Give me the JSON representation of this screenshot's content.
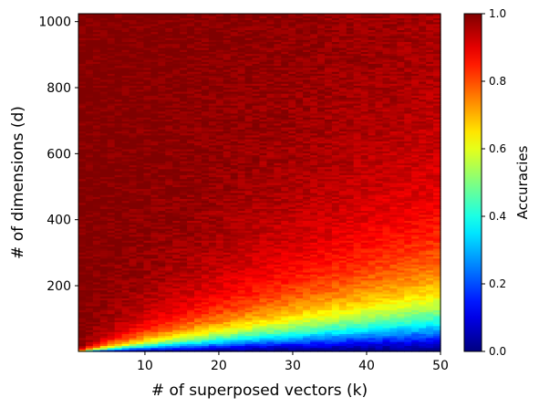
{
  "chart_data": {
    "type": "heatmap",
    "title": "",
    "xlabel": "# of superposed vectors (k)",
    "ylabel": "# of dimensions (d)",
    "colorbar_label": "Accuracies",
    "colormap": "jet",
    "xlim": [
      1,
      50
    ],
    "ylim": [
      1,
      1024
    ],
    "clim": [
      0.0,
      1.0
    ],
    "x_ticks": [
      10,
      20,
      30,
      40,
      50
    ],
    "x_tick_labels": [
      "10",
      "20",
      "30",
      "40",
      "50"
    ],
    "y_ticks": [
      200,
      400,
      600,
      800,
      1000
    ],
    "y_tick_labels": [
      "200",
      "400",
      "600",
      "800",
      "1000"
    ],
    "colorbar_ticks": [
      0.0,
      0.2,
      0.4,
      0.6,
      0.8,
      1.0
    ],
    "colorbar_tick_labels": [
      "0.0",
      "0.2",
      "0.4",
      "0.6",
      "0.8",
      "1.0"
    ],
    "accuracy_contours": {
      "description_levels": [
        0.2,
        0.5,
        0.8,
        0.95
      ],
      "k": [
        1,
        10,
        20,
        30,
        40,
        50
      ],
      "d_at_accuracy_0.2": [
        1,
        10,
        18,
        25,
        32,
        40
      ],
      "d_at_accuracy_0.5": [
        1,
        30,
        55,
        80,
        105,
        130
      ],
      "d_at_accuracy_0.8": [
        1,
        80,
        140,
        200,
        260,
        320
      ],
      "d_at_accuracy_0.95": [
        1,
        170,
        290,
        400,
        510,
        620
      ]
    },
    "grid": false,
    "legend": "none"
  }
}
